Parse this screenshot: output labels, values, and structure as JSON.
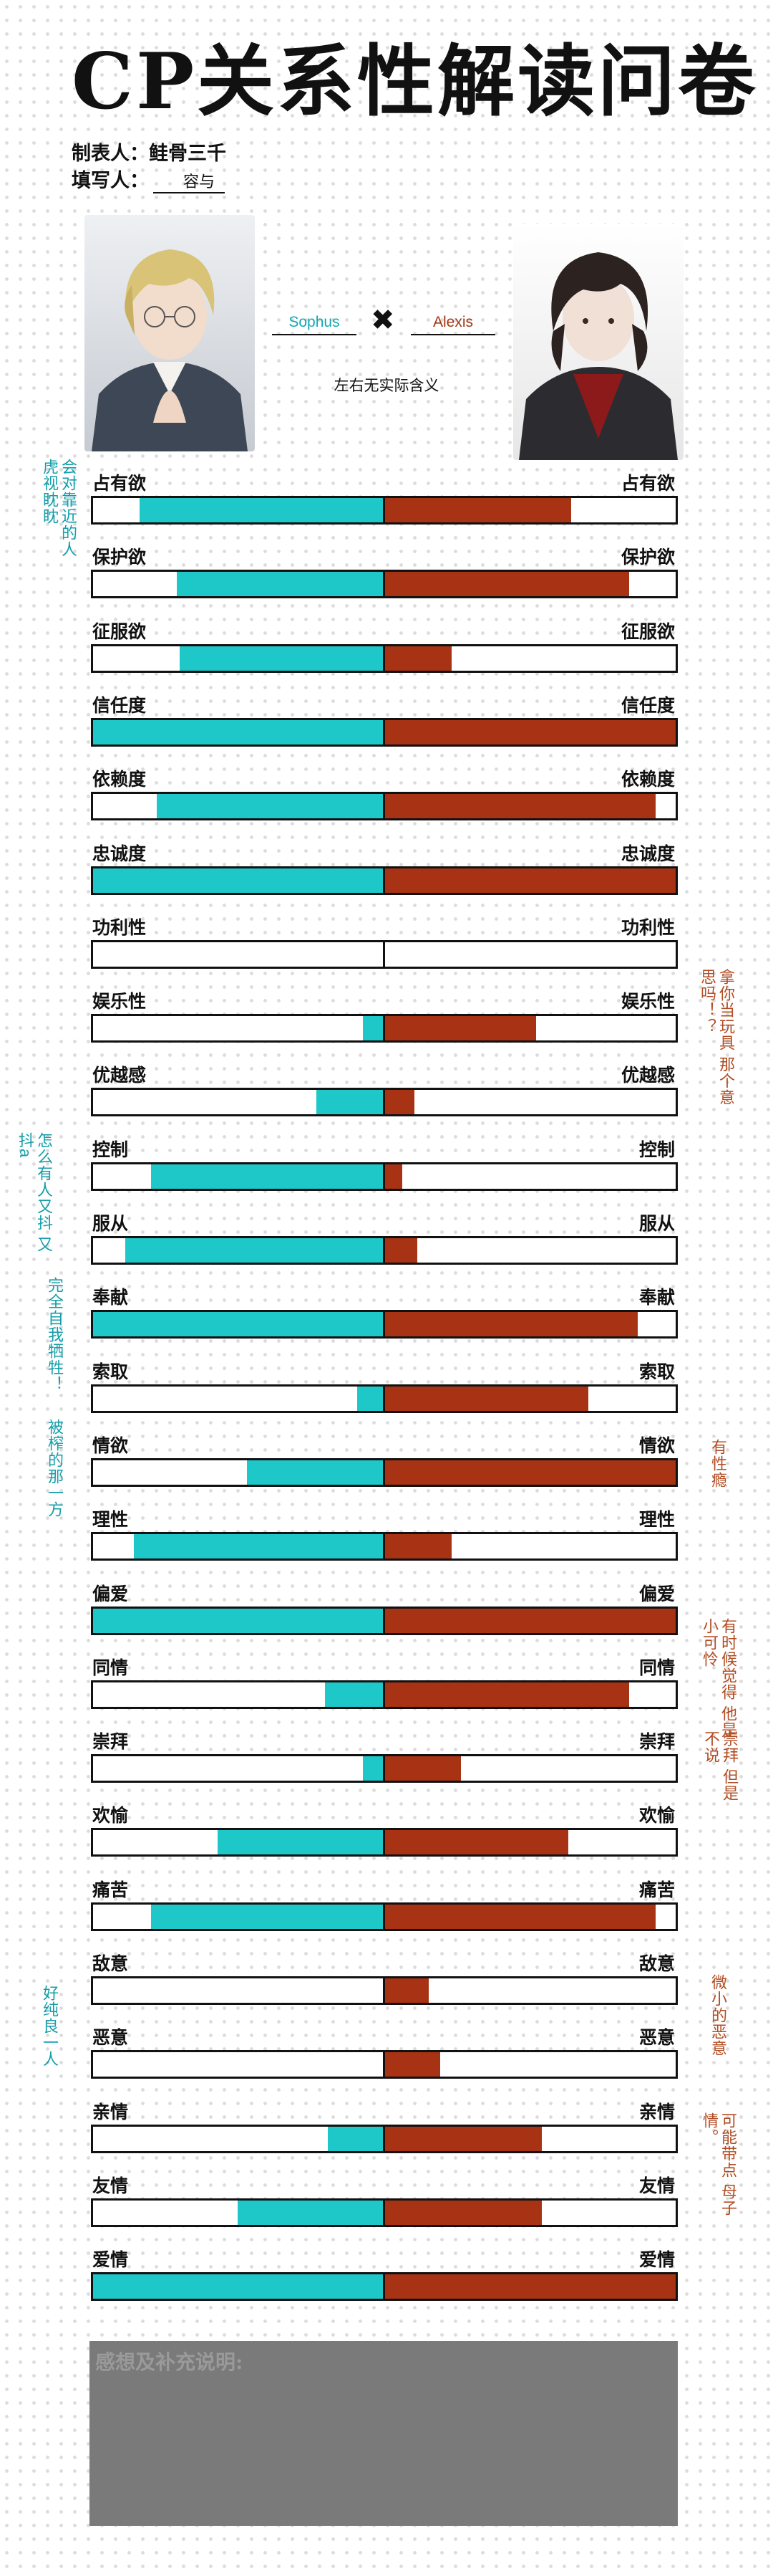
{
  "header": {
    "title": "CP关系性解读问卷",
    "maker_label": "制表人：鲑骨三千",
    "filler_label": "填写人：",
    "filler_name": "容与"
  },
  "pair": {
    "left_name": "Sophus",
    "cross": "✖",
    "right_name": "Alexis",
    "note": "左右无实际含义"
  },
  "colors": {
    "left": "#1ec8c9",
    "right": "#a73214"
  },
  "traits": [
    {
      "label": "占有欲",
      "left": 0.84,
      "right": 0.64
    },
    {
      "label": "保护欲",
      "left": 0.71,
      "right": 0.84
    },
    {
      "label": "征服欲",
      "left": 0.7,
      "right": 0.23
    },
    {
      "label": "信任度",
      "left": 1.0,
      "right": 1.0
    },
    {
      "label": "依赖度",
      "left": 0.78,
      "right": 0.93
    },
    {
      "label": "忠诚度",
      "left": 1.0,
      "right": 1.0
    },
    {
      "label": "功利性",
      "left": 0.0,
      "right": 0.0
    },
    {
      "label": "娱乐性",
      "left": 0.07,
      "right": 0.52
    },
    {
      "label": "优越感",
      "left": 0.23,
      "right": 0.1
    },
    {
      "label": "控制",
      "left": 0.8,
      "right": 0.06
    },
    {
      "label": "服从",
      "left": 0.89,
      "right": 0.11
    },
    {
      "label": "奉献",
      "left": 1.0,
      "right": 0.87
    },
    {
      "label": "索取",
      "left": 0.09,
      "right": 0.7
    },
    {
      "label": "情欲",
      "left": 0.47,
      "right": 1.0
    },
    {
      "label": "理性",
      "left": 0.86,
      "right": 0.23
    },
    {
      "label": "偏爱",
      "left": 1.0,
      "right": 1.0
    },
    {
      "label": "同情",
      "left": 0.2,
      "right": 0.84
    },
    {
      "label": "崇拜",
      "left": 0.07,
      "right": 0.26
    },
    {
      "label": "欢愉",
      "left": 0.57,
      "right": 0.63
    },
    {
      "label": "痛苦",
      "left": 0.8,
      "right": 0.93
    },
    {
      "label": "敌意",
      "left": 0.0,
      "right": 0.15
    },
    {
      "label": "恶意",
      "left": 0.0,
      "right": 0.19
    },
    {
      "label": "亲情",
      "left": 0.19,
      "right": 0.54
    },
    {
      "label": "友情",
      "left": 0.5,
      "right": 0.54
    },
    {
      "label": "爱情",
      "left": 1.0,
      "right": 1.0
    }
  ],
  "notes": [
    "会对靠近的人\n虎视眈眈",
    "拿你当玩具\n那个意思吗！？",
    "怎么有人又抖\n又抖a",
    "完全自我牺牲！",
    "被榨的那一方",
    "有性瘾",
    "有时候觉得\n他是小可怜",
    "崇拜\n但是不说",
    "好纯良一人",
    "微小的恶意",
    "可能带点\n母子情。"
  ],
  "comment_label": "感想及补充说明:"
}
